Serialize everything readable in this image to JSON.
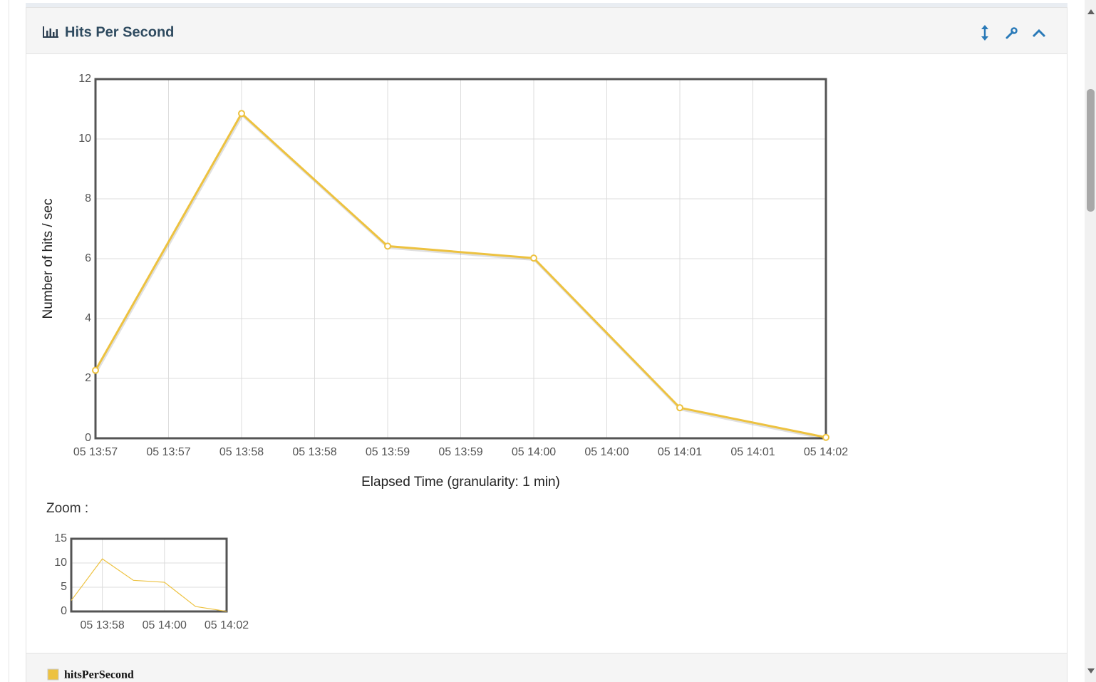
{
  "header": {
    "title": "Hits Per Second"
  },
  "zoom_label": "Zoom :",
  "chart_data": [
    {
      "type": "line",
      "x_label": "Elapsed Time (granularity: 1 min)",
      "y_label": "Number of hits / sec",
      "categories": [
        "05 13:57",
        "05 13:58",
        "05 13:59",
        "05 14:00",
        "05 14:01",
        "05 14:02"
      ],
      "series": [
        {
          "name": "hitsPerSecond",
          "color": "#edc240",
          "values": [
            2.27,
            10.85,
            6.42,
            6.02,
            1.02,
            0.03
          ]
        }
      ],
      "ylim": [
        0,
        12
      ],
      "yticks": [
        0,
        2,
        4,
        6,
        8,
        10,
        12
      ],
      "xticks": [
        "05 13:57",
        "05 13:57",
        "05 13:58",
        "05 13:58",
        "05 13:59",
        "05 13:59",
        "05 14:00",
        "05 14:00",
        "05 14:01",
        "05 14:01",
        "05 14:02"
      ],
      "grid": true,
      "markers": true
    },
    {
      "type": "line",
      "categories": [
        "05 13:57",
        "05 13:58",
        "05 13:59",
        "05 14:00",
        "05 14:01",
        "05 14:02"
      ],
      "series": [
        {
          "name": "hitsPerSecond",
          "color": "#edc240",
          "values": [
            2.27,
            10.85,
            6.42,
            6.02,
            1.02,
            0.03
          ]
        }
      ],
      "ylim": [
        0,
        15
      ],
      "yticks": [
        0,
        5,
        10,
        15
      ],
      "xticks": [
        "05 13:58",
        "05 14:00",
        "05 14:02"
      ],
      "grid": true,
      "markers": false
    }
  ]
}
